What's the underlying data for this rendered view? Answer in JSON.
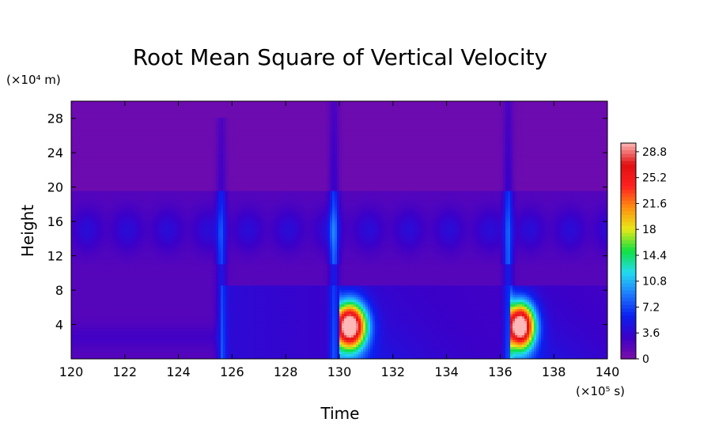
{
  "chart_data": {
    "type": "heatmap",
    "title": "Root Mean Square of Vertical Velocity",
    "xlabel": "Time",
    "ylabel": "Height",
    "x_multiplier": "(×10⁵ s)",
    "y_multiplier": "(×10⁴ m)",
    "xlim": [
      120,
      140
    ],
    "ylim": [
      0,
      30
    ],
    "x_ticks": [
      "120",
      "122",
      "124",
      "126",
      "128",
      "130",
      "132",
      "134",
      "136",
      "138",
      "140"
    ],
    "y_ticks": [
      "4",
      "8",
      "12",
      "16",
      "20",
      "24",
      "28"
    ],
    "colorbar": {
      "min": 0,
      "max": 30,
      "labels": [
        "28.8",
        "25.2",
        "21.6",
        "18",
        "14.4",
        "10.8",
        "7.2",
        "3.6",
        "0"
      ],
      "colors": [
        "#7a0ea8",
        "#3c00c8",
        "#0a20f0",
        "#1e7cff",
        "#22dcf0",
        "#10e040",
        "#e8e818",
        "#ff9010",
        "#ff2020",
        "#e01010",
        "#ffb8b8"
      ]
    },
    "features": [
      {
        "type": "burst",
        "time": 125.6,
        "peak_height": 28,
        "peak_value": 7
      },
      {
        "type": "burst",
        "time": 129.8,
        "peak_height": 30,
        "peak_value": 8
      },
      {
        "type": "burst",
        "time": 136.3,
        "peak_height": 30,
        "peak_value": 8
      },
      {
        "type": "core",
        "time_start": 130.0,
        "time_end": 131.8,
        "height_top": 8.5,
        "peak_value": 30
      },
      {
        "type": "core",
        "time_start": 136.4,
        "time_end": 138.0,
        "height_top": 8.5,
        "peak_value": 30
      },
      {
        "type": "band",
        "height_min": 12,
        "height_max": 19.5,
        "typical_value": 6
      }
    ]
  }
}
